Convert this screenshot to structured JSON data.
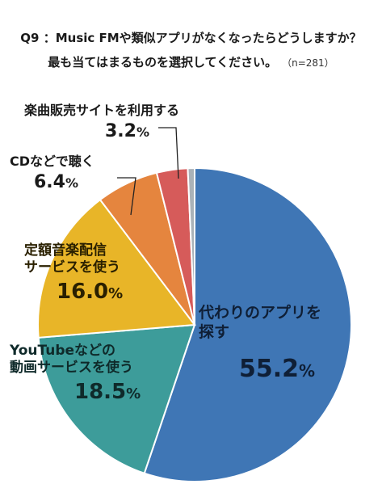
{
  "question": {
    "line1": "Q9 ：Music FMや類似アプリがなくなったらどうしますか？",
    "line2": "最も当てはまるものを選択してください。",
    "n": "（n=281）"
  },
  "chart_data": {
    "type": "pie",
    "title": "Q9 ：Music FMや類似アプリがなくなったらどうしますか？ 最も当てはまるものを選択してください。",
    "unit": "%",
    "slices": [
      {
        "label": "代わりのアプリを探す",
        "value": 55.2,
        "color": "#3f76b5"
      },
      {
        "label": "YouTubeなどの動画サービスを使う",
        "value": 18.5,
        "color": "#3d9c9a"
      },
      {
        "label": "定額音楽配信サービスを使う",
        "value": 16.0,
        "color": "#e8b528"
      },
      {
        "label": "CDなどで聴く",
        "value": 6.4,
        "color": "#e5853e"
      },
      {
        "label": "楽曲販売サイトを利用する",
        "value": 3.2,
        "color": "#d65b5a"
      },
      {
        "label": "",
        "value": 0.7,
        "color": "#aab2b8"
      }
    ]
  },
  "labels": {
    "s0": {
      "l1": "代わりのアプリを",
      "l2": "探す",
      "pct": "55.2",
      "unit": "%"
    },
    "s1": {
      "l1": "YouTubeなどの",
      "l2": "動画サービスを使う",
      "pct": "18.5",
      "unit": "%"
    },
    "s2": {
      "l1": "定額音楽配信",
      "l2": "サービスを使う",
      "pct": "16.0",
      "unit": "%"
    },
    "s3": {
      "l1": "CDなどで聴く",
      "pct": "6.4",
      "unit": "%"
    },
    "s4": {
      "l1": "楽曲販売サイトを利用する",
      "pct": "3.2",
      "unit": "%"
    }
  }
}
